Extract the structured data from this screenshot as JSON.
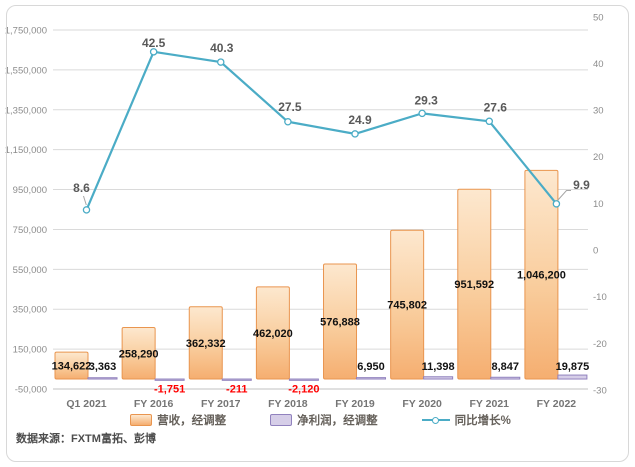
{
  "chart_data": {
    "type": "combo",
    "title": "",
    "categories": [
      "Q1 2021",
      "FY 2016",
      "FY 2017",
      "FY 2018",
      "FY 2019",
      "FY 2020",
      "FY 2021",
      "FY 2022"
    ],
    "series": [
      {
        "name": "营收，经调整",
        "type": "bar",
        "axis": "left",
        "values": [
          134622,
          258290,
          362332,
          462020,
          576888,
          745802,
          951592,
          1046200
        ]
      },
      {
        "name": "净利润，经调整",
        "type": "bar",
        "axis": "left",
        "values": [
          3363,
          -1751,
          -211,
          -2120,
          6950,
          11398,
          8847,
          19875
        ]
      },
      {
        "name": "同比增长%",
        "type": "line",
        "axis": "right",
        "values": [
          8.6,
          42.5,
          40.3,
          27.5,
          24.9,
          29.3,
          27.6,
          9.9
        ]
      }
    ],
    "axes": {
      "left": {
        "min": -50000,
        "max": 1750000,
        "step": 200000,
        "ticks": [
          -50000,
          150000,
          350000,
          550000,
          750000,
          950000,
          1150000,
          1350000,
          1550000,
          1750000
        ]
      },
      "right": {
        "min": -30,
        "max": 50,
        "step": 10,
        "ticks": [
          -30,
          -20,
          -10,
          0,
          10,
          20,
          30,
          40,
          50
        ]
      }
    },
    "grid": true,
    "legend_position": "bottom",
    "source_note": "数据来源：FXTM富拓、彭博",
    "colors": {
      "revenue_fill_top": "#FDE8CF",
      "revenue_fill_mid": "#F9CD9D",
      "revenue_fill_bottom": "#F5AE70",
      "revenue_border": "#E9954F",
      "profit_fill": "#D6CEE8",
      "profit_border": "#9182BE",
      "growth_line": "#4BACC6",
      "marker_fill": "#FFFFFF",
      "bar_label": "#111111",
      "negative_label": "#FF0000",
      "line_label": "#595959",
      "axis_text": "#8C8C8C",
      "category_text": "#757575",
      "legend_text": "#66615B",
      "source_text": "#4D4D4D",
      "grid_line": "#DADADA",
      "axis_line": "#C0C0C0",
      "leader_line": "#A6A6A6",
      "frame_border": "#D8D8D8"
    }
  }
}
